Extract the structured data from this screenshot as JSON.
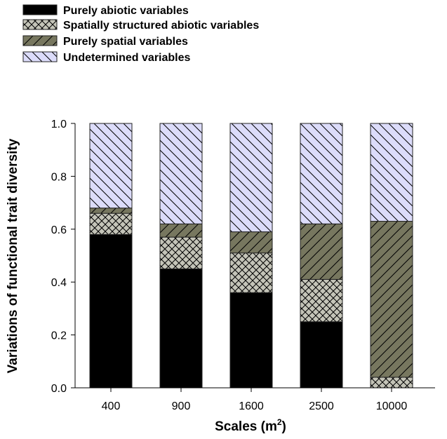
{
  "chart_data": {
    "type": "bar",
    "stacked": true,
    "title": "",
    "xlabel": "Scales (m²)",
    "xlabel_base": "Scales (m",
    "xlabel_sup": "2",
    "xlabel_end": ")",
    "ylabel": "Variations of functional trait diversity",
    "ylim": [
      0,
      1.0
    ],
    "yticks": [
      "0.0",
      "0.2",
      "0.4",
      "0.6",
      "0.8",
      "1.0"
    ],
    "categories": [
      "400",
      "900",
      "1600",
      "2500",
      "10000"
    ],
    "legend_position": "top-left",
    "grid": false,
    "series": [
      {
        "name": "Purely abiotic variables",
        "values": [
          0.58,
          0.45,
          0.36,
          0.25,
          0.0
        ],
        "color": "#000000",
        "pattern": "solid"
      },
      {
        "name": "Spatially structured abiotic variables",
        "values": [
          0.08,
          0.12,
          0.15,
          0.16,
          0.04
        ],
        "color": "#c4c4b8",
        "pattern": "crosshatch"
      },
      {
        "name": "Purely spatial variables",
        "values": [
          0.02,
          0.05,
          0.08,
          0.21,
          0.59
        ],
        "color": "#77775f",
        "pattern": "forward-diagonal"
      },
      {
        "name": "Undetermined variables",
        "values": [
          0.32,
          0.38,
          0.41,
          0.38,
          0.37
        ],
        "color": "#dcdcfa",
        "pattern": "back-diagonal"
      }
    ]
  }
}
